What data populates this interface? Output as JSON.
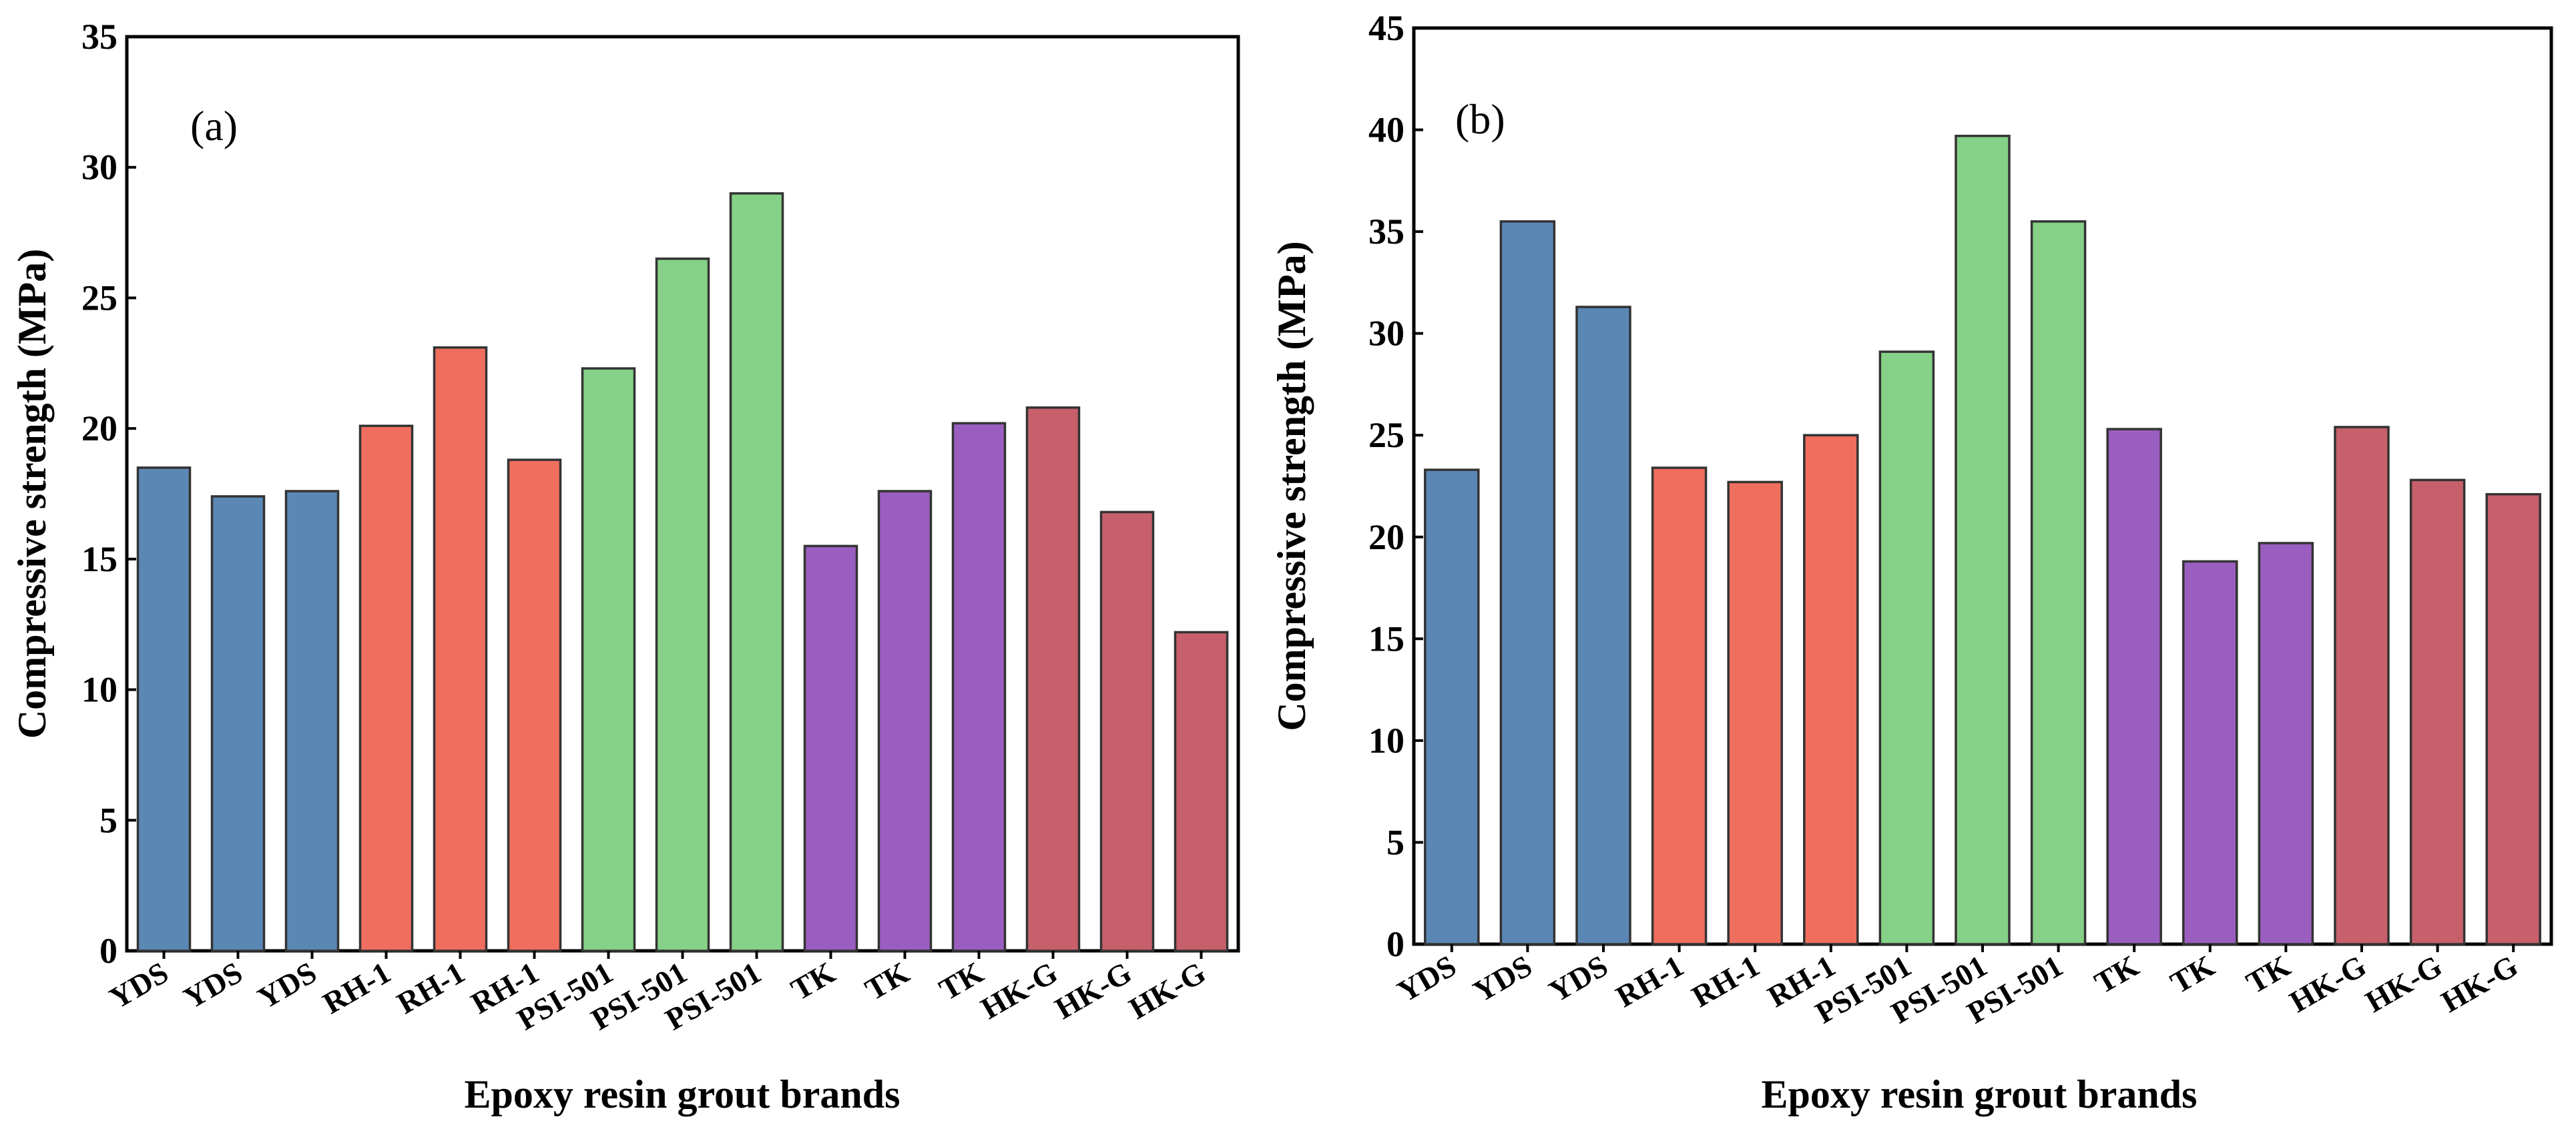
{
  "chart_data": [
    {
      "type": "bar",
      "panel_label": "(a)",
      "xlabel": "Epoxy resin grout brands",
      "ylabel": "Compressive strength (MPa)",
      "ylim": [
        0,
        35
      ],
      "yticks": [
        0,
        5,
        10,
        15,
        20,
        25,
        30,
        35
      ],
      "categories": [
        "YDS",
        "YDS",
        "YDS",
        "RH-1",
        "RH-1",
        "RH-1",
        "PSI-501",
        "PSI-501",
        "PSI-501",
        "TK",
        "TK",
        "TK",
        "HK-G",
        "HK-G",
        "HK-G"
      ],
      "values": [
        18.5,
        17.4,
        17.6,
        20.1,
        23.1,
        18.8,
        22.3,
        26.5,
        29.0,
        15.5,
        17.6,
        20.2,
        20.8,
        16.8,
        12.2
      ],
      "bar_colors": [
        "#5b87b5",
        "#5b87b5",
        "#5b87b5",
        "#f06e5e",
        "#f06e5e",
        "#f06e5e",
        "#85d187",
        "#85d187",
        "#85d187",
        "#9a5ec0",
        "#9a5ec0",
        "#9a5ec0",
        "#c7606b",
        "#c7606b",
        "#c7606b"
      ],
      "grid": false,
      "legend": "none"
    },
    {
      "type": "bar",
      "panel_label": "(b)",
      "xlabel": "Epoxy resin grout brands",
      "ylabel": "Compressive strength (MPa)",
      "ylim": [
        0,
        45
      ],
      "yticks": [
        0,
        5,
        10,
        15,
        20,
        25,
        30,
        35,
        40,
        45
      ],
      "categories": [
        "YDS",
        "YDS",
        "YDS",
        "RH-1",
        "RH-1",
        "RH-1",
        "PSI-501",
        "PSI-501",
        "PSI-501",
        "TK",
        "TK",
        "TK",
        "HK-G",
        "HK-G",
        "HK-G"
      ],
      "values": [
        23.3,
        35.5,
        31.3,
        23.4,
        22.7,
        25.0,
        29.1,
        39.7,
        35.5,
        25.3,
        18.8,
        19.7,
        25.4,
        22.8,
        22.1
      ],
      "bar_colors": [
        "#5b87b5",
        "#5b87b5",
        "#5b87b5",
        "#f06e5e",
        "#f06e5e",
        "#f06e5e",
        "#85d187",
        "#85d187",
        "#85d187",
        "#9a5ec0",
        "#9a5ec0",
        "#9a5ec0",
        "#c7606b",
        "#c7606b",
        "#c7606b"
      ],
      "grid": false,
      "legend": "none"
    }
  ]
}
